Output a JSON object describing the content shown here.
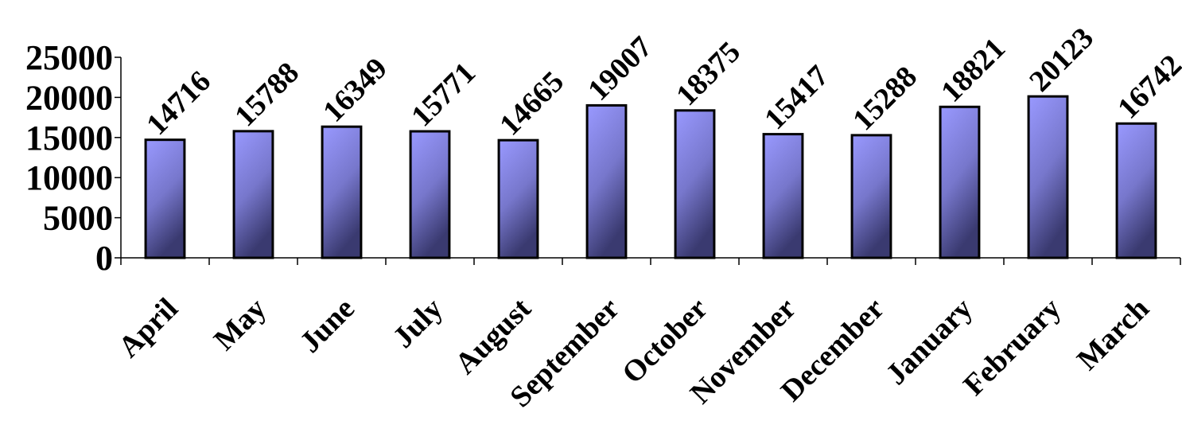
{
  "chart_data": {
    "type": "bar",
    "categories": [
      "April",
      "May",
      "June",
      "July",
      "August",
      "September",
      "October",
      "November",
      "December",
      "January",
      "February",
      "March"
    ],
    "values": [
      14716,
      15788,
      16349,
      15771,
      14665,
      19007,
      18375,
      15417,
      15288,
      18821,
      20123,
      16742
    ],
    "data_labels": [
      "14716",
      "15788",
      "16349",
      "15771",
      "14665",
      "19007",
      "18375",
      "15417",
      "15288",
      "18821",
      "20123",
      "16742"
    ],
    "title": "",
    "xlabel": "",
    "ylabel": "",
    "ylim": [
      0,
      25000
    ],
    "yticks": [
      0,
      5000,
      10000,
      15000,
      20000,
      25000
    ],
    "ytick_labels": [
      "0",
      "5000",
      "10000",
      "15000",
      "20000",
      "25000"
    ],
    "grid": false,
    "legend": "none",
    "colors": {
      "bar_top": "#9999ff",
      "bar_bottom": "#3a3a70",
      "bar_outline": "#000000",
      "axis": "#000000"
    }
  }
}
